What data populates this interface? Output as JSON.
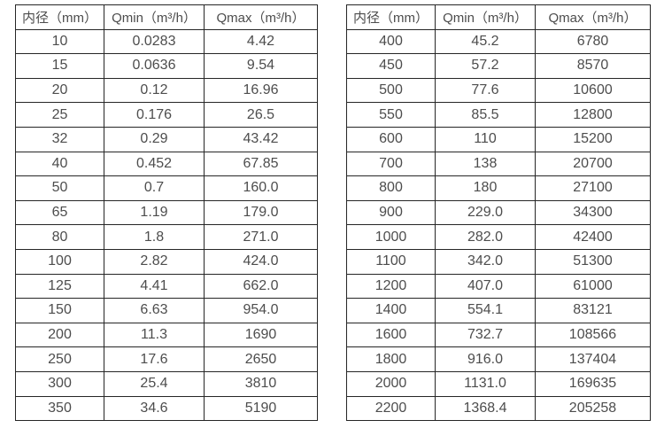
{
  "colors": {
    "background": "#ffffff",
    "border": "#262626",
    "text": "#4d4d4d"
  },
  "tables": [
    {
      "name": "small-diameter-flow-table",
      "headers": [
        "内径（mm）",
        "Qmin（m³/h）",
        "Qmax（m³/h）"
      ],
      "rows": [
        [
          "10",
          "0.0283",
          "4.42"
        ],
        [
          "15",
          "0.0636",
          "9.54"
        ],
        [
          "20",
          "0.12",
          "16.96"
        ],
        [
          "25",
          "0.176",
          "26.5"
        ],
        [
          "32",
          "0.29",
          "43.42"
        ],
        [
          "40",
          "0.452",
          "67.85"
        ],
        [
          "50",
          "0.7",
          "160.0"
        ],
        [
          "65",
          "1.19",
          "179.0"
        ],
        [
          "80",
          "1.8",
          "271.0"
        ],
        [
          "100",
          "2.82",
          "424.0"
        ],
        [
          "125",
          "4.41",
          "662.0"
        ],
        [
          "150",
          "6.63",
          "954.0"
        ],
        [
          "200",
          "11.3",
          "1690"
        ],
        [
          "250",
          "17.6",
          "2650"
        ],
        [
          "300",
          "25.4",
          "3810"
        ],
        [
          "350",
          "34.6",
          "5190"
        ]
      ]
    },
    {
      "name": "large-diameter-flow-table",
      "headers": [
        "内径（mm）",
        "Qmin（m³/h）",
        "Qmax（m³/h）"
      ],
      "rows": [
        [
          "400",
          "45.2",
          "6780"
        ],
        [
          "450",
          "57.2",
          "8570"
        ],
        [
          "500",
          "77.6",
          "10600"
        ],
        [
          "550",
          "85.5",
          "12800"
        ],
        [
          "600",
          "110",
          "15200"
        ],
        [
          "700",
          "138",
          "20700"
        ],
        [
          "800",
          "180",
          "27100"
        ],
        [
          "900",
          "229.0",
          "34300"
        ],
        [
          "1000",
          "282.0",
          "42400"
        ],
        [
          "1100",
          "342.0",
          "51300"
        ],
        [
          "1200",
          "407.0",
          "61000"
        ],
        [
          "1400",
          "554.1",
          "83121"
        ],
        [
          "1600",
          "732.7",
          "108566"
        ],
        [
          "1800",
          "916.0",
          "137404"
        ],
        [
          "2000",
          "1131.0",
          "169635"
        ],
        [
          "2200",
          "1368.4",
          "205258"
        ]
      ]
    }
  ]
}
